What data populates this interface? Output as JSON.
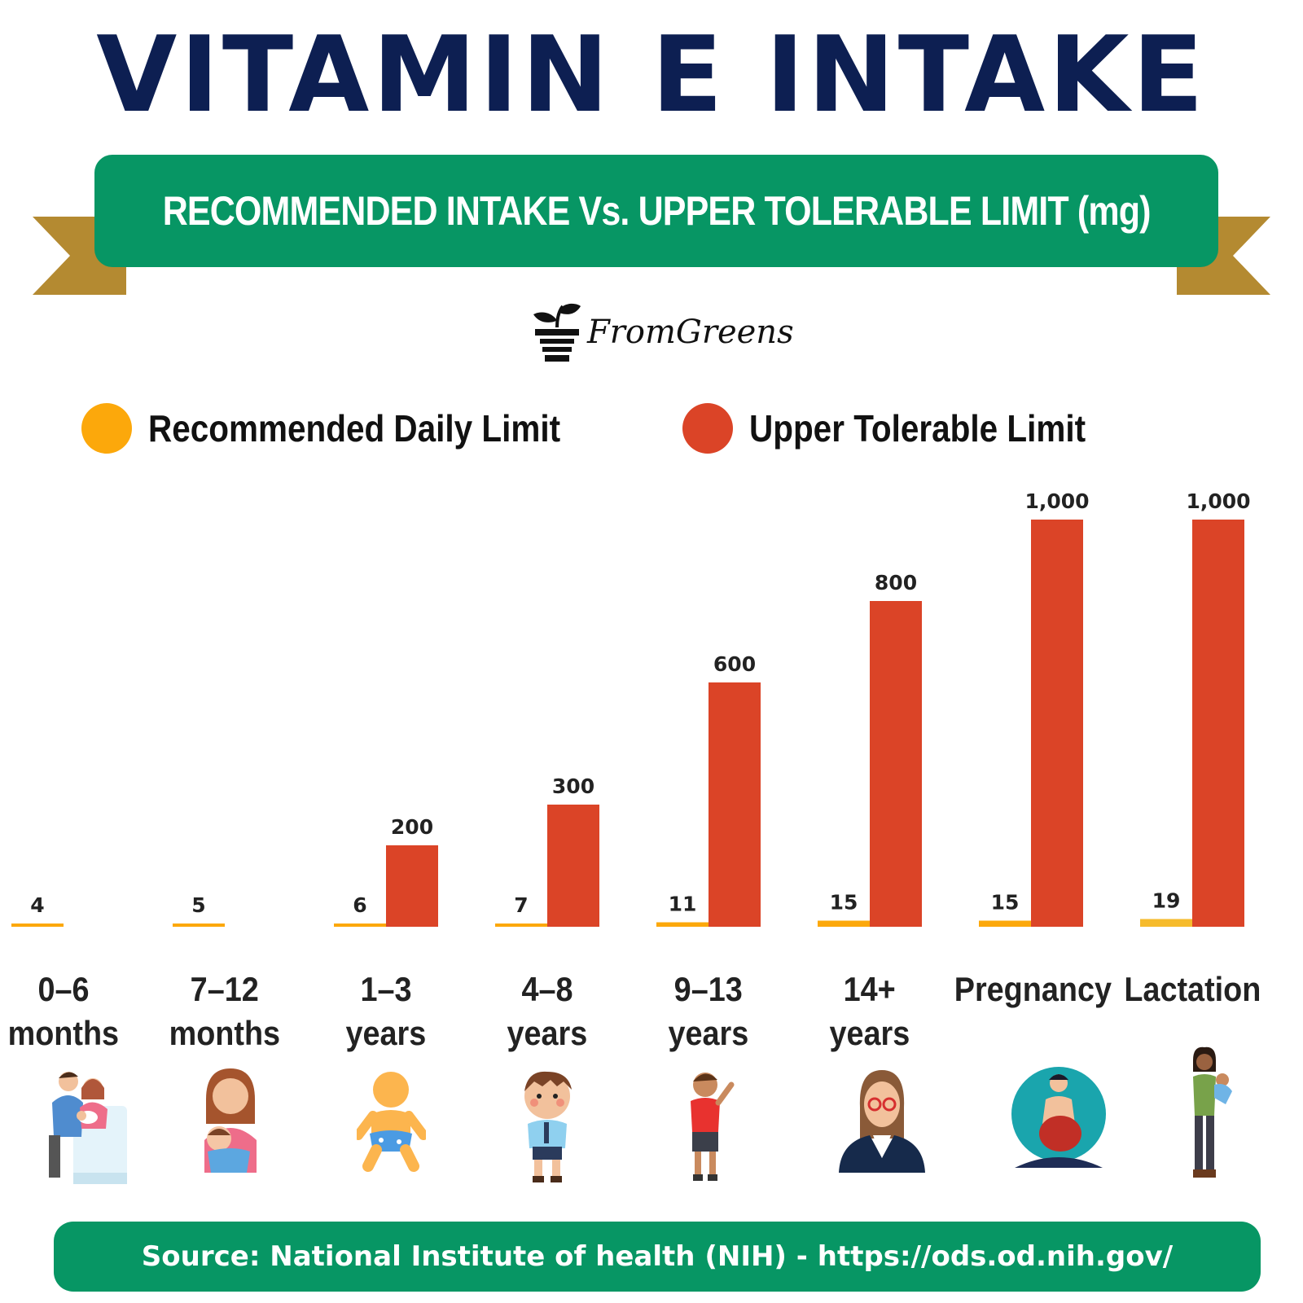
{
  "title": "VITAMIN E INTAKE",
  "subtitle": "RECOMMENDED INTAKE Vs. UPPER TOLERABLE LIMIT (mg)",
  "brand": "FromGreens",
  "source": "Source: National Institute of health (NIH) - https://ods.od.nih.gov/",
  "colors": {
    "title": "#0d1f52",
    "banner": "#079664",
    "ribbon_tail": "#b48a31",
    "recommended": "#fca80b",
    "upper": "#db4427"
  },
  "icons": [
    "family-with-newborn-icon",
    "mother-holding-baby-icon",
    "infant-icon",
    "schoolboy-icon",
    "waving-child-icon",
    "adult-woman-icon",
    "pregnant-woman-icon",
    "mother-carrying-baby-icon"
  ],
  "chart_data": {
    "type": "bar",
    "title": "RECOMMENDED INTAKE Vs. UPPER TOLERABLE LIMIT (mg)",
    "categories": [
      [
        "0–6",
        "months"
      ],
      [
        "7–12",
        "months"
      ],
      [
        "1–3",
        "years"
      ],
      [
        "4–8",
        "years"
      ],
      [
        "9–13",
        "years"
      ],
      [
        "14+",
        "years"
      ],
      [
        "Pregnancy"
      ],
      [
        "Lactation"
      ]
    ],
    "series": [
      {
        "name": "Recommended Daily Limit",
        "values": [
          4,
          5,
          6,
          7,
          11,
          15,
          15,
          19
        ],
        "labels": [
          "4",
          "5",
          "6",
          "7",
          "11",
          "15",
          "15",
          "19"
        ]
      },
      {
        "name": "Upper Tolerable Limit",
        "values": [
          null,
          null,
          200,
          300,
          600,
          800,
          1000,
          1000
        ],
        "labels": [
          "",
          "",
          "200",
          "300",
          "600",
          "800",
          "1,000",
          "1,000"
        ]
      }
    ],
    "legend": "top",
    "grid": false,
    "xlabel": "",
    "ylabel": ""
  }
}
